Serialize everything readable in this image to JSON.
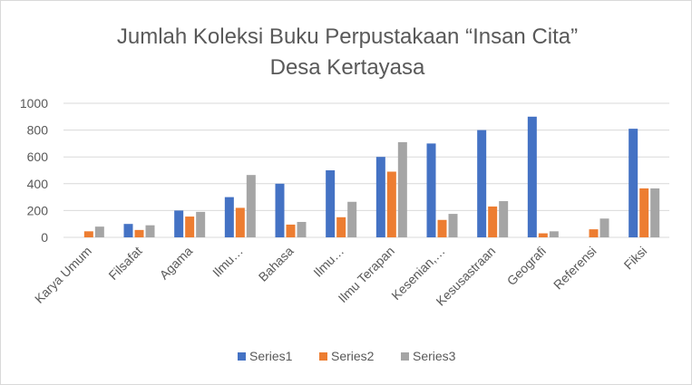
{
  "chart_data": {
    "type": "bar",
    "title_line1": "Jumlah Koleksi Buku Perpustakaan “Insan Cita”",
    "title_line2": "Desa Kertayasa",
    "categories": [
      "Karya Umum",
      "Filsafat",
      "Agama",
      "Ilmu…",
      "Bahasa",
      "Ilmu…",
      "Ilmu Terapan",
      "Kesenian,…",
      "Kesusastraan",
      "Geografi",
      "Referensi",
      "Fiksi"
    ],
    "series": [
      {
        "name": "Series1",
        "color": "#4472C4",
        "values": [
          0,
          100,
          200,
          300,
          400,
          500,
          600,
          700,
          800,
          900,
          0,
          810
        ]
      },
      {
        "name": "Series2",
        "color": "#ED7D31",
        "values": [
          45,
          55,
          155,
          220,
          95,
          150,
          490,
          130,
          230,
          30,
          60,
          365
        ]
      },
      {
        "name": "Series3",
        "color": "#A5A5A5",
        "values": [
          80,
          90,
          190,
          465,
          115,
          265,
          710,
          175,
          270,
          45,
          140,
          365
        ]
      }
    ],
    "yticks": [
      "0",
      "200",
      "400",
      "600",
      "800",
      "1000"
    ],
    "ylim": [
      0,
      1000
    ],
    "grid": true,
    "legend": "bottom"
  }
}
